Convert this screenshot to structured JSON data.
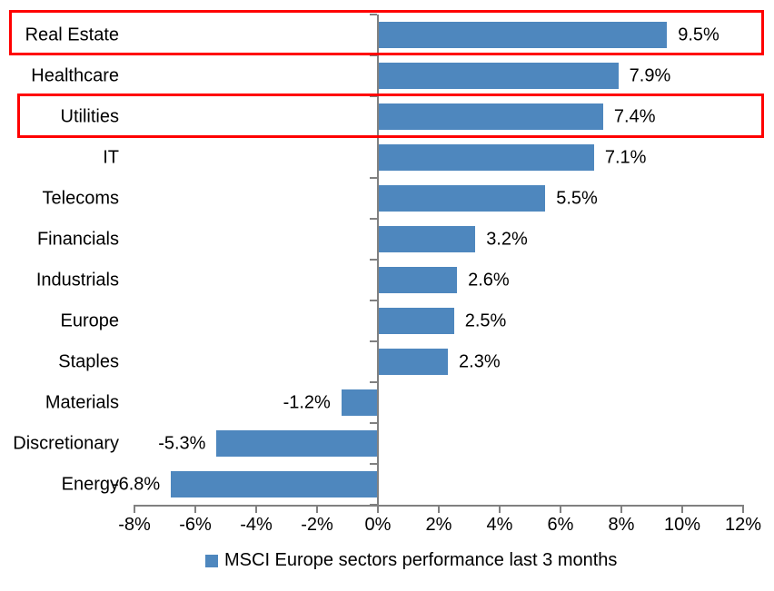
{
  "chart_data": {
    "type": "bar",
    "orientation": "horizontal",
    "title": "",
    "categories": [
      "Real Estate",
      "Healthcare",
      "Utilities",
      "IT",
      "Telecoms",
      "Financials",
      "Industrials",
      "Europe",
      "Staples",
      "Materials",
      "Discretionary",
      "Energy"
    ],
    "values": [
      9.5,
      7.9,
      7.4,
      7.1,
      5.5,
      3.2,
      2.6,
      2.5,
      2.3,
      -1.2,
      -5.3,
      -6.8
    ],
    "value_labels": [
      "9.5%",
      "7.9%",
      "7.4%",
      "7.1%",
      "5.5%",
      "3.2%",
      "2.6%",
      "2.5%",
      "2.3%",
      "-1.2%",
      "-5.3%",
      "-6.8%"
    ],
    "xlim": [
      -8,
      12
    ],
    "x_tick_step": 2,
    "x_tick_labels": [
      "-8%",
      "-6%",
      "-4%",
      "-2%",
      "0%",
      "2%",
      "4%",
      "6%",
      "8%",
      "10%",
      "12%"
    ],
    "grid": false,
    "legend": "MSCI Europe sectors performance last 3 months",
    "legend_position": "bottom",
    "bar_color": "#4e87be",
    "axis_color": "#808080",
    "text_color": "#000000",
    "highlight_color": "#ff0000",
    "highlighted_categories": [
      "Real Estate",
      "Utilities"
    ]
  }
}
